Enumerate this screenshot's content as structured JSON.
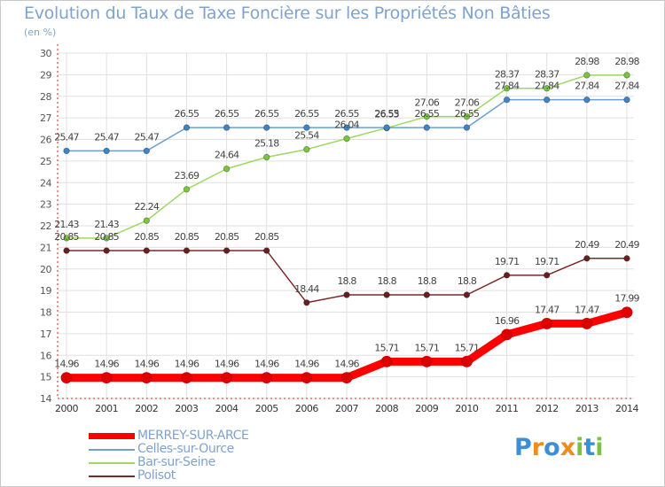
{
  "title": "Evolution du Taux de Taxe Foncière sur les Propriétés Non Bâties",
  "unit_label": "(en %)",
  "logo": {
    "letters": [
      "P",
      "r",
      "o",
      "x",
      "i",
      "t",
      "i"
    ],
    "colors": [
      "#3b8fd6",
      "#f08c1e",
      "#3b8fd6",
      "#f08c1e",
      "#7cc242",
      "#3b8fd6",
      "#7cc242"
    ]
  },
  "chart_data": {
    "type": "line",
    "title": "Evolution du Taux de Taxe Foncière sur les Propriétés Non Bâties",
    "ylabel": "(en %)",
    "ylim": [
      14,
      30
    ],
    "yticks": [
      14,
      15,
      16,
      17,
      18,
      19,
      20,
      21,
      22,
      23,
      24,
      25,
      26,
      27,
      28,
      29,
      30
    ],
    "x": [
      "2000",
      "2001",
      "2002",
      "2003",
      "2004",
      "2005",
      "2006",
      "2007",
      "2008",
      "2009",
      "2010",
      "2011",
      "2012",
      "2013",
      "2014"
    ],
    "series": [
      {
        "name": "MERREY-SUR-ARCE",
        "color": "#ff0000",
        "marker": "#dd0000",
        "values": [
          14.96,
          14.96,
          14.96,
          14.96,
          14.96,
          14.96,
          14.96,
          14.96,
          15.71,
          15.71,
          15.71,
          16.96,
          17.47,
          17.47,
          17.99
        ],
        "labels": [
          "14.96",
          "14.96",
          "14.96",
          "14.96",
          "14.96",
          "14.96",
          "14.96",
          "14.96",
          "15.71",
          "15.71",
          "15.71",
          "16.96",
          "17.47",
          "17.47",
          "17.99"
        ]
      },
      {
        "name": "Celles-sur-Ource",
        "color": "#6e9fd0",
        "marker": "#3f84c6",
        "values": [
          25.47,
          25.47,
          25.47,
          26.55,
          26.55,
          26.55,
          26.55,
          26.55,
          26.55,
          26.55,
          26.55,
          27.84,
          27.84,
          27.84,
          27.84
        ],
        "labels": [
          "25.47",
          "25.47",
          "25.47",
          "26.55",
          "26.55",
          "26.55",
          "26.55",
          "26.55",
          "26.55",
          "26.55",
          "26.55",
          "27.84",
          "27.84",
          "27.84",
          "27.84"
        ]
      },
      {
        "name": "Bar-sur-Seine",
        "color": "#9ed866",
        "marker": "#79c53b",
        "values": [
          21.43,
          21.43,
          22.24,
          23.69,
          24.64,
          25.18,
          25.54,
          26.04,
          26.53,
          27.06,
          27.06,
          28.37,
          28.37,
          28.98,
          28.98
        ],
        "labels": [
          "21.43",
          "21.43",
          "22.24",
          "23.69",
          "24.64",
          "25.18",
          "25.54",
          "26.04",
          "26.53",
          "27.06",
          "27.06",
          "28.37",
          "28.37",
          "28.98",
          "28.98"
        ]
      },
      {
        "name": "Polisot",
        "color": "#7a2a2a",
        "marker": "#6a1f1f",
        "values": [
          20.85,
          20.85,
          20.85,
          20.85,
          20.85,
          20.85,
          18.44,
          18.8,
          18.8,
          18.8,
          18.8,
          19.71,
          19.71,
          20.49,
          20.49
        ],
        "labels": [
          "20.85",
          "20.85",
          "20.85",
          "20.85",
          "20.85",
          "20.85",
          "18.44",
          "18.8",
          "18.8",
          "18.8",
          "18.8",
          "19.71",
          "19.71",
          "20.49",
          "20.49"
        ]
      }
    ]
  }
}
